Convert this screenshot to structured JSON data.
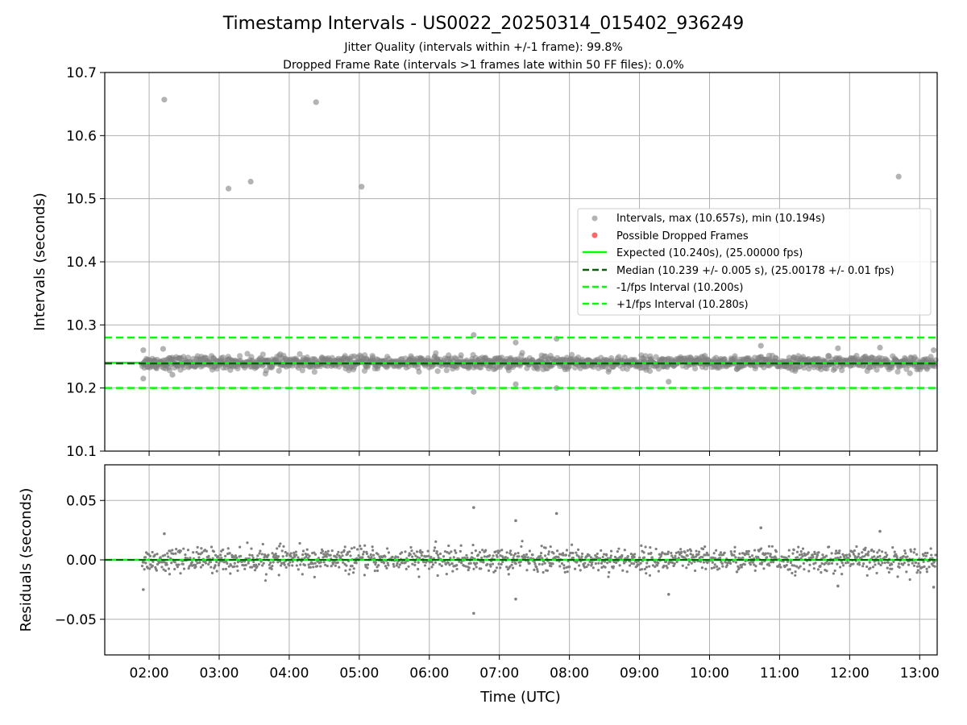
{
  "figure": {
    "title": "Timestamp Intervals - US0022_20250314_015402_936249",
    "subtitle_1": "Jitter Quality (intervals within +/-1 frame): 99.8%",
    "subtitle_2": "Dropped Frame Rate (intervals >1 frames late within 50 FF files): 0.0%"
  },
  "colors": {
    "points": "#808080",
    "dropped": "#ff0000",
    "expected": "#00ff00",
    "median": "#006400",
    "bounds": "#00ff00",
    "grid": "#b0b0b0"
  },
  "chart_data": [
    {
      "type": "scatter",
      "ylabel": "Intervals (seconds)",
      "xlim": [
        "01:22",
        "13:15"
      ],
      "ylim": [
        10.1,
        10.7
      ],
      "yticks": [
        "10.1",
        "10.2",
        "10.3",
        "10.4",
        "10.5",
        "10.6",
        "10.7"
      ],
      "grid": true,
      "legend_position": "center-right",
      "legend": [
        "Intervals, max (10.657s), min (10.194s)",
        "Possible Dropped Frames",
        "Expected (10.240s), (25.00000 fps)",
        "Median (10.239 +/- 0.005 s), (25.00178 +/- 0.01 fps)",
        "-1/fps Interval (10.200s)",
        "+1/fps Interval (10.280s)"
      ],
      "reference_lines": {
        "expected": 10.24,
        "median": 10.239,
        "minus_1_fps": 10.2,
        "plus_1_fps": 10.28
      },
      "band": {
        "x_start": "01:54",
        "x_end": "13:15",
        "center": 10.24,
        "spread": 0.005
      },
      "outliers": [
        {
          "x": "02:13",
          "y": 10.657
        },
        {
          "x": "03:08",
          "y": 10.516
        },
        {
          "x": "03:27",
          "y": 10.527
        },
        {
          "x": "04:23",
          "y": 10.653
        },
        {
          "x": "05:02",
          "y": 10.519
        },
        {
          "x": "12:42",
          "y": 10.535
        },
        {
          "x": "06:38",
          "y": 10.284
        },
        {
          "x": "07:49",
          "y": 10.278
        },
        {
          "x": "07:14",
          "y": 10.272
        },
        {
          "x": "06:38",
          "y": 10.194
        },
        {
          "x": "07:49",
          "y": 10.2
        },
        {
          "x": "07:14",
          "y": 10.206
        },
        {
          "x": "09:25",
          "y": 10.21
        },
        {
          "x": "01:55",
          "y": 10.26
        },
        {
          "x": "02:12",
          "y": 10.262
        },
        {
          "x": "01:55",
          "y": 10.215
        },
        {
          "x": "02:20",
          "y": 10.221
        },
        {
          "x": "10:44",
          "y": 10.267
        },
        {
          "x": "11:50",
          "y": 10.263
        },
        {
          "x": "12:26",
          "y": 10.264
        },
        {
          "x": "13:12",
          "y": 10.26
        }
      ]
    },
    {
      "type": "scatter",
      "xlabel": "Time (UTC)",
      "ylabel": "Residuals (seconds)",
      "xlim": [
        "01:22",
        "13:15"
      ],
      "xticks": [
        "02:00",
        "03:00",
        "04:00",
        "05:00",
        "06:00",
        "07:00",
        "08:00",
        "09:00",
        "10:00",
        "11:00",
        "12:00",
        "13:00"
      ],
      "ylim": [
        -0.08,
        0.08
      ],
      "yticks": [
        "−0.05",
        "0.00",
        "0.05"
      ],
      "grid": true,
      "zero_line": 0.0,
      "outliers": [
        {
          "x": "06:38",
          "y": 0.044
        },
        {
          "x": "07:49",
          "y": 0.039
        },
        {
          "x": "07:14",
          "y": 0.033
        },
        {
          "x": "06:38",
          "y": -0.045
        },
        {
          "x": "07:14",
          "y": -0.033
        },
        {
          "x": "09:25",
          "y": -0.029
        },
        {
          "x": "10:44",
          "y": 0.027
        },
        {
          "x": "02:13",
          "y": 0.022
        },
        {
          "x": "12:26",
          "y": 0.024
        },
        {
          "x": "01:55",
          "y": -0.025
        },
        {
          "x": "11:50",
          "y": -0.022
        },
        {
          "x": "13:12",
          "y": -0.023
        }
      ]
    }
  ]
}
